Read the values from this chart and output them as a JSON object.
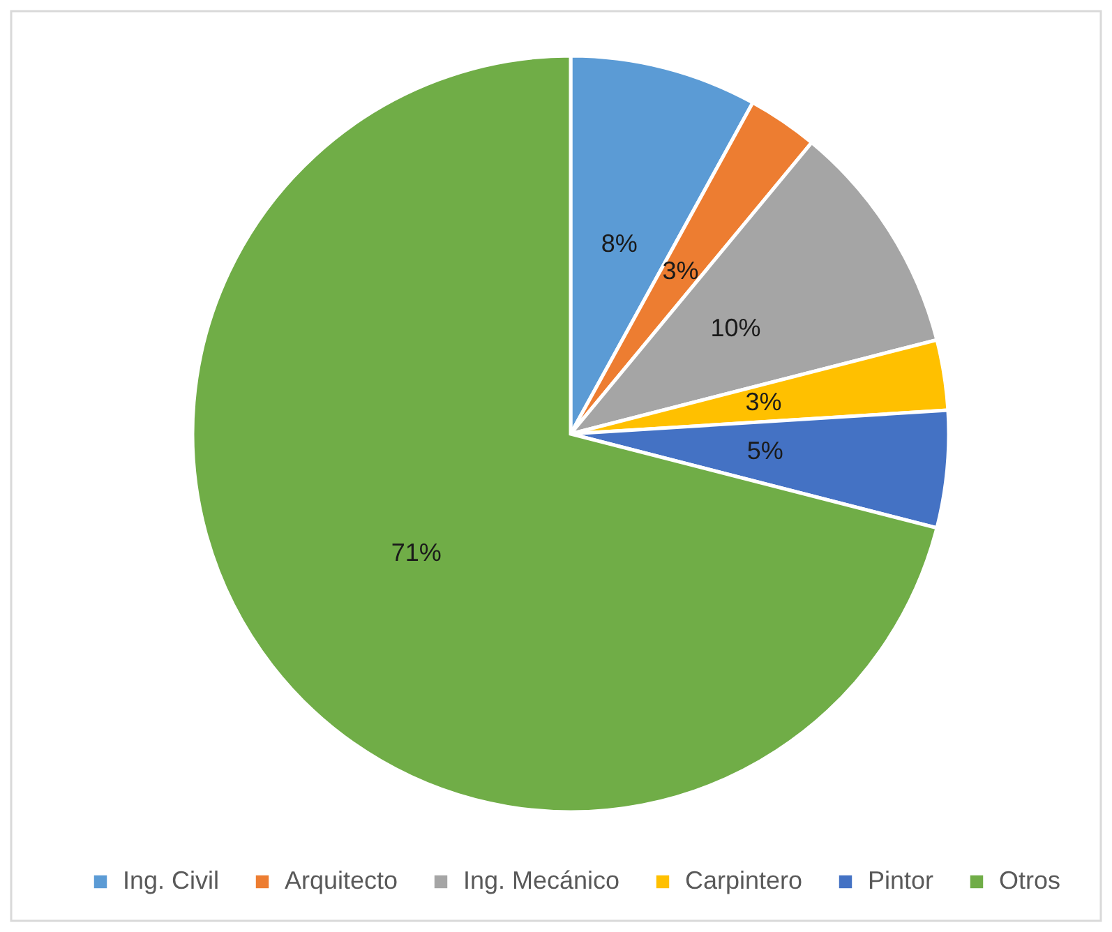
{
  "chart_data": {
    "type": "pie",
    "categories": [
      "Ing. Civil",
      "Arquitecto",
      "Ing. Mecánico",
      "Carpintero",
      "Pintor",
      "Otros"
    ],
    "values": [
      8,
      3,
      10,
      3,
      5,
      71
    ],
    "colors": [
      "#5b9bd5",
      "#ed7d31",
      "#a5a5a5",
      "#ffc000",
      "#4472c4",
      "#70ad47"
    ],
    "value_labels": [
      "8%",
      "3%",
      "10%",
      "3%",
      "5%",
      "71%"
    ],
    "legend": "bottom"
  }
}
